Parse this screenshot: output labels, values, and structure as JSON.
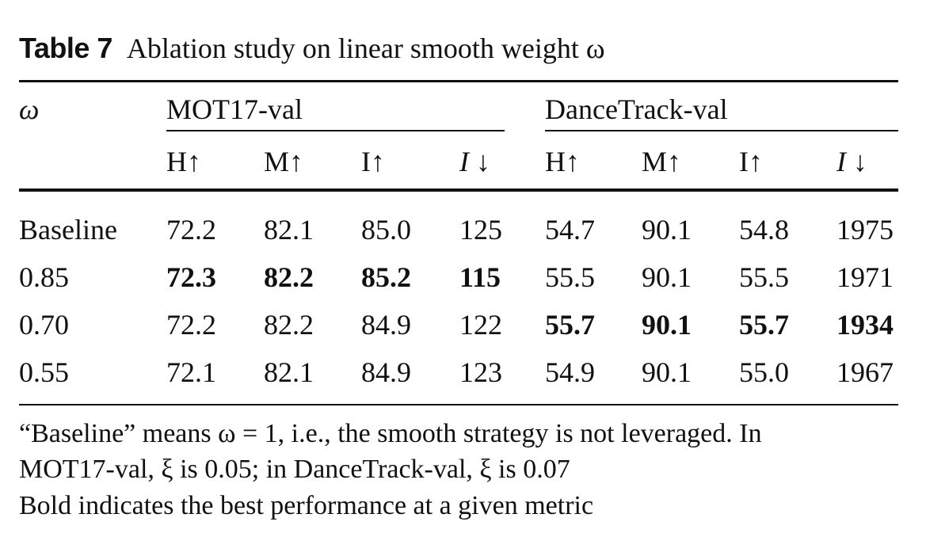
{
  "caption": {
    "label": "Table 7",
    "text": "Ablation study on linear smooth weight ω"
  },
  "header": {
    "row_label": "ω",
    "groups": [
      "MOT17-val",
      "DanceTrack-val"
    ],
    "metrics": [
      "H↑",
      "M↑",
      "I↑",
      "I ↓",
      "H↑",
      "M↑",
      "I↑",
      "I ↓"
    ]
  },
  "rows": [
    {
      "label": "Baseline",
      "values": [
        "72.2",
        "82.1",
        "85.0",
        "125",
        "54.7",
        "90.1",
        "54.8",
        "1975"
      ]
    },
    {
      "label": "0.85",
      "values": [
        "72.3",
        "82.2",
        "85.2",
        "115",
        "55.5",
        "90.1",
        "55.5",
        "1971"
      ]
    },
    {
      "label": "0.70",
      "values": [
        "72.2",
        "82.2",
        "84.9",
        "122",
        "55.7",
        "90.1",
        "55.7",
        "1934"
      ]
    },
    {
      "label": "0.55",
      "values": [
        "72.1",
        "82.1",
        "84.9",
        "123",
        "54.9",
        "90.1",
        "55.0",
        "1967"
      ]
    }
  ],
  "notes": [
    "“Baseline” means ω = 1, i.e., the smooth strategy is not leveraged. In",
    "MOT17-val, ξ is 0.05; in DanceTrack-val, ξ is 0.07",
    "Bold indicates the best performance at a given metric"
  ]
}
